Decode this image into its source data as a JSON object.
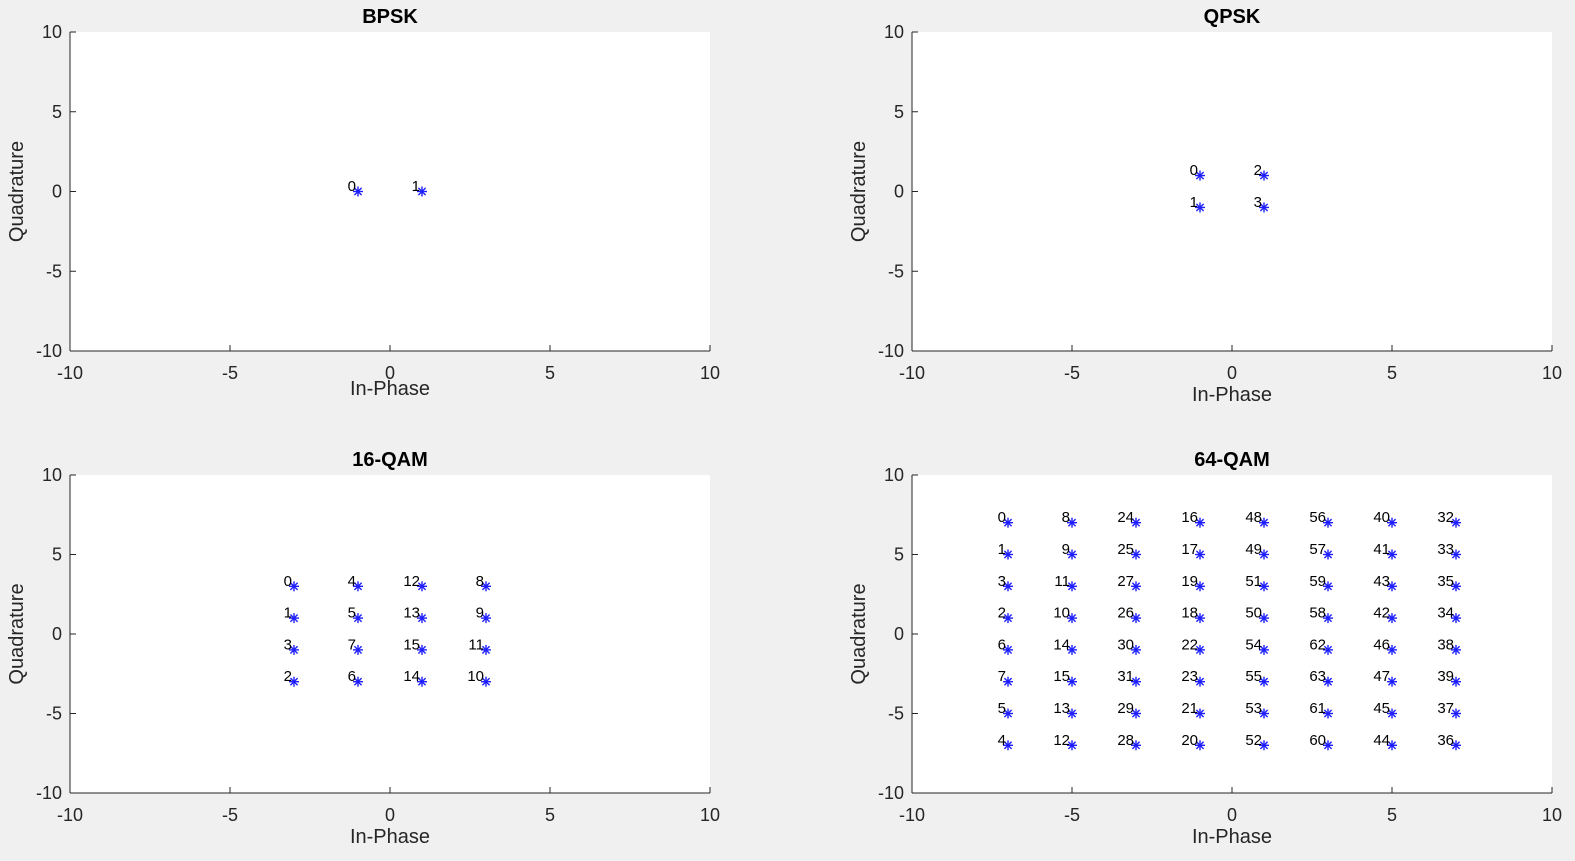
{
  "figure": {
    "background": "#f0f0f0",
    "axes_background": "#ffffff",
    "marker_color": "#1f1fff",
    "marker": "*"
  },
  "chart_data": [
    {
      "type": "scatter",
      "title": "BPSK",
      "xlabel": "In-Phase",
      "ylabel": "Quadrature",
      "xlim": [
        -10,
        10
      ],
      "ylim": [
        -10,
        10
      ],
      "xticks": [
        -10,
        -5,
        0,
        5,
        10
      ],
      "yticks": [
        -10,
        -5,
        0,
        5,
        10
      ],
      "grid": false,
      "points": [
        {
          "x": -1,
          "y": 0,
          "label": "0"
        },
        {
          "x": 1,
          "y": 0,
          "label": "1"
        }
      ]
    },
    {
      "type": "scatter",
      "title": "QPSK",
      "xlabel": "In-Phase",
      "ylabel": "Quadrature",
      "xlim": [
        -10,
        10
      ],
      "ylim": [
        -10,
        10
      ],
      "xticks": [
        -10,
        -5,
        0,
        5,
        10
      ],
      "yticks": [
        -10,
        -5,
        0,
        5,
        10
      ],
      "grid": false,
      "points": [
        {
          "x": -1,
          "y": 1,
          "label": "0"
        },
        {
          "x": -1,
          "y": -1,
          "label": "1"
        },
        {
          "x": 1,
          "y": 1,
          "label": "2"
        },
        {
          "x": 1,
          "y": -1,
          "label": "3"
        }
      ]
    },
    {
      "type": "scatter",
      "title": "16-QAM",
      "xlabel": "In-Phase",
      "ylabel": "Quadrature",
      "xlim": [
        -10,
        10
      ],
      "ylim": [
        -10,
        10
      ],
      "xticks": [
        -10,
        -5,
        0,
        5,
        10
      ],
      "yticks": [
        -10,
        -5,
        0,
        5,
        10
      ],
      "grid": false,
      "points": [
        {
          "x": -3,
          "y": 3,
          "label": "0"
        },
        {
          "x": -3,
          "y": 1,
          "label": "1"
        },
        {
          "x": -3,
          "y": -3,
          "label": "2"
        },
        {
          "x": -3,
          "y": -1,
          "label": "3"
        },
        {
          "x": -1,
          "y": 3,
          "label": "4"
        },
        {
          "x": -1,
          "y": 1,
          "label": "5"
        },
        {
          "x": -1,
          "y": -3,
          "label": "6"
        },
        {
          "x": -1,
          "y": -1,
          "label": "7"
        },
        {
          "x": 3,
          "y": 3,
          "label": "8"
        },
        {
          "x": 3,
          "y": 1,
          "label": "9"
        },
        {
          "x": 3,
          "y": -3,
          "label": "10"
        },
        {
          "x": 3,
          "y": -1,
          "label": "11"
        },
        {
          "x": 1,
          "y": 3,
          "label": "12"
        },
        {
          "x": 1,
          "y": 1,
          "label": "13"
        },
        {
          "x": 1,
          "y": -3,
          "label": "14"
        },
        {
          "x": 1,
          "y": -1,
          "label": "15"
        }
      ]
    },
    {
      "type": "scatter",
      "title": "64-QAM",
      "xlabel": "In-Phase",
      "ylabel": "Quadrature",
      "xlim": [
        -10,
        10
      ],
      "ylim": [
        -10,
        10
      ],
      "xticks": [
        -10,
        -5,
        0,
        5,
        10
      ],
      "yticks": [
        -10,
        -5,
        0,
        5,
        10
      ],
      "grid": false,
      "points": [
        {
          "x": -7,
          "y": 7,
          "label": "0"
        },
        {
          "x": -5,
          "y": 7,
          "label": "8"
        },
        {
          "x": -3,
          "y": 7,
          "label": "24"
        },
        {
          "x": -1,
          "y": 7,
          "label": "16"
        },
        {
          "x": 1,
          "y": 7,
          "label": "48"
        },
        {
          "x": 3,
          "y": 7,
          "label": "56"
        },
        {
          "x": 5,
          "y": 7,
          "label": "40"
        },
        {
          "x": 7,
          "y": 7,
          "label": "32"
        },
        {
          "x": -7,
          "y": 5,
          "label": "1"
        },
        {
          "x": -5,
          "y": 5,
          "label": "9"
        },
        {
          "x": -3,
          "y": 5,
          "label": "25"
        },
        {
          "x": -1,
          "y": 5,
          "label": "17"
        },
        {
          "x": 1,
          "y": 5,
          "label": "49"
        },
        {
          "x": 3,
          "y": 5,
          "label": "57"
        },
        {
          "x": 5,
          "y": 5,
          "label": "41"
        },
        {
          "x": 7,
          "y": 5,
          "label": "33"
        },
        {
          "x": -7,
          "y": 3,
          "label": "3"
        },
        {
          "x": -5,
          "y": 3,
          "label": "11"
        },
        {
          "x": -3,
          "y": 3,
          "label": "27"
        },
        {
          "x": -1,
          "y": 3,
          "label": "19"
        },
        {
          "x": 1,
          "y": 3,
          "label": "51"
        },
        {
          "x": 3,
          "y": 3,
          "label": "59"
        },
        {
          "x": 5,
          "y": 3,
          "label": "43"
        },
        {
          "x": 7,
          "y": 3,
          "label": "35"
        },
        {
          "x": -7,
          "y": 1,
          "label": "2"
        },
        {
          "x": -5,
          "y": 1,
          "label": "10"
        },
        {
          "x": -3,
          "y": 1,
          "label": "26"
        },
        {
          "x": -1,
          "y": 1,
          "label": "18"
        },
        {
          "x": 1,
          "y": 1,
          "label": "50"
        },
        {
          "x": 3,
          "y": 1,
          "label": "58"
        },
        {
          "x": 5,
          "y": 1,
          "label": "42"
        },
        {
          "x": 7,
          "y": 1,
          "label": "34"
        },
        {
          "x": -7,
          "y": -1,
          "label": "6"
        },
        {
          "x": -5,
          "y": -1,
          "label": "14"
        },
        {
          "x": -3,
          "y": -1,
          "label": "30"
        },
        {
          "x": -1,
          "y": -1,
          "label": "22"
        },
        {
          "x": 1,
          "y": -1,
          "label": "54"
        },
        {
          "x": 3,
          "y": -1,
          "label": "62"
        },
        {
          "x": 5,
          "y": -1,
          "label": "46"
        },
        {
          "x": 7,
          "y": -1,
          "label": "38"
        },
        {
          "x": -7,
          "y": -3,
          "label": "7"
        },
        {
          "x": -5,
          "y": -3,
          "label": "15"
        },
        {
          "x": -3,
          "y": -3,
          "label": "31"
        },
        {
          "x": -1,
          "y": -3,
          "label": "23"
        },
        {
          "x": 1,
          "y": -3,
          "label": "55"
        },
        {
          "x": 3,
          "y": -3,
          "label": "63"
        },
        {
          "x": 5,
          "y": -3,
          "label": "47"
        },
        {
          "x": 7,
          "y": -3,
          "label": "39"
        },
        {
          "x": -7,
          "y": -5,
          "label": "5"
        },
        {
          "x": -5,
          "y": -5,
          "label": "13"
        },
        {
          "x": -3,
          "y": -5,
          "label": "29"
        },
        {
          "x": -1,
          "y": -5,
          "label": "21"
        },
        {
          "x": 1,
          "y": -5,
          "label": "53"
        },
        {
          "x": 3,
          "y": -5,
          "label": "61"
        },
        {
          "x": 5,
          "y": -5,
          "label": "45"
        },
        {
          "x": 7,
          "y": -5,
          "label": "37"
        },
        {
          "x": -7,
          "y": -7,
          "label": "4"
        },
        {
          "x": -5,
          "y": -7,
          "label": "12"
        },
        {
          "x": -3,
          "y": -7,
          "label": "28"
        },
        {
          "x": -1,
          "y": -7,
          "label": "20"
        },
        {
          "x": 1,
          "y": -7,
          "label": "52"
        },
        {
          "x": 3,
          "y": -7,
          "label": "60"
        },
        {
          "x": 5,
          "y": -7,
          "label": "44"
        },
        {
          "x": 7,
          "y": -7,
          "label": "36"
        }
      ]
    }
  ]
}
